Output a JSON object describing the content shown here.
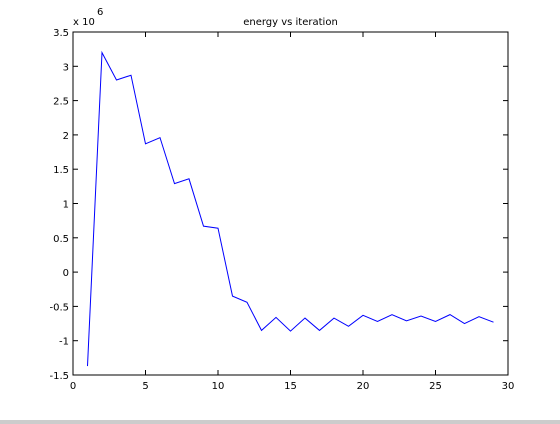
{
  "chart_data": {
    "type": "line",
    "title": "energy vs iteration",
    "xlabel": "",
    "ylabel": "",
    "xlim": [
      0,
      30
    ],
    "ylim": [
      -1.5,
      3.5
    ],
    "y_multiplier_base": "x 10",
    "y_multiplier_exponent": "6",
    "x_ticks": [
      {
        "value": 0,
        "label": "0"
      },
      {
        "value": 5,
        "label": "5"
      },
      {
        "value": 10,
        "label": "10"
      },
      {
        "value": 15,
        "label": "15"
      },
      {
        "value": 20,
        "label": "20"
      },
      {
        "value": 25,
        "label": "25"
      },
      {
        "value": 30,
        "label": "30"
      }
    ],
    "y_ticks": [
      {
        "value": -1.5,
        "label": "-1.5"
      },
      {
        "value": -1,
        "label": "-1"
      },
      {
        "value": -0.5,
        "label": "-0.5"
      },
      {
        "value": 0,
        "label": "0"
      },
      {
        "value": 0.5,
        "label": "0.5"
      },
      {
        "value": 1,
        "label": "1"
      },
      {
        "value": 1.5,
        "label": "1.5"
      },
      {
        "value": 2,
        "label": "2"
      },
      {
        "value": 2.5,
        "label": "2.5"
      },
      {
        "value": 3,
        "label": "3"
      },
      {
        "value": 3.5,
        "label": "3.5"
      }
    ],
    "grid": false,
    "series": [
      {
        "color": "#0000ff",
        "x": [
          1,
          2,
          3,
          4,
          5,
          6,
          7,
          8,
          9,
          10,
          11,
          12,
          13,
          14,
          15,
          16,
          17,
          18,
          19,
          20,
          21,
          22,
          23,
          24,
          25,
          26,
          27,
          28,
          29
        ],
        "y": [
          -1.37,
          3.2,
          2.8,
          2.87,
          1.87,
          1.96,
          1.29,
          1.36,
          0.67,
          0.64,
          -0.35,
          -0.44,
          -0.85,
          -0.66,
          -0.86,
          -0.67,
          -0.85,
          -0.67,
          -0.79,
          -0.63,
          -0.72,
          -0.62,
          -0.71,
          -0.64,
          -0.72,
          -0.62,
          -0.75,
          -0.65,
          -0.73
        ]
      }
    ]
  }
}
